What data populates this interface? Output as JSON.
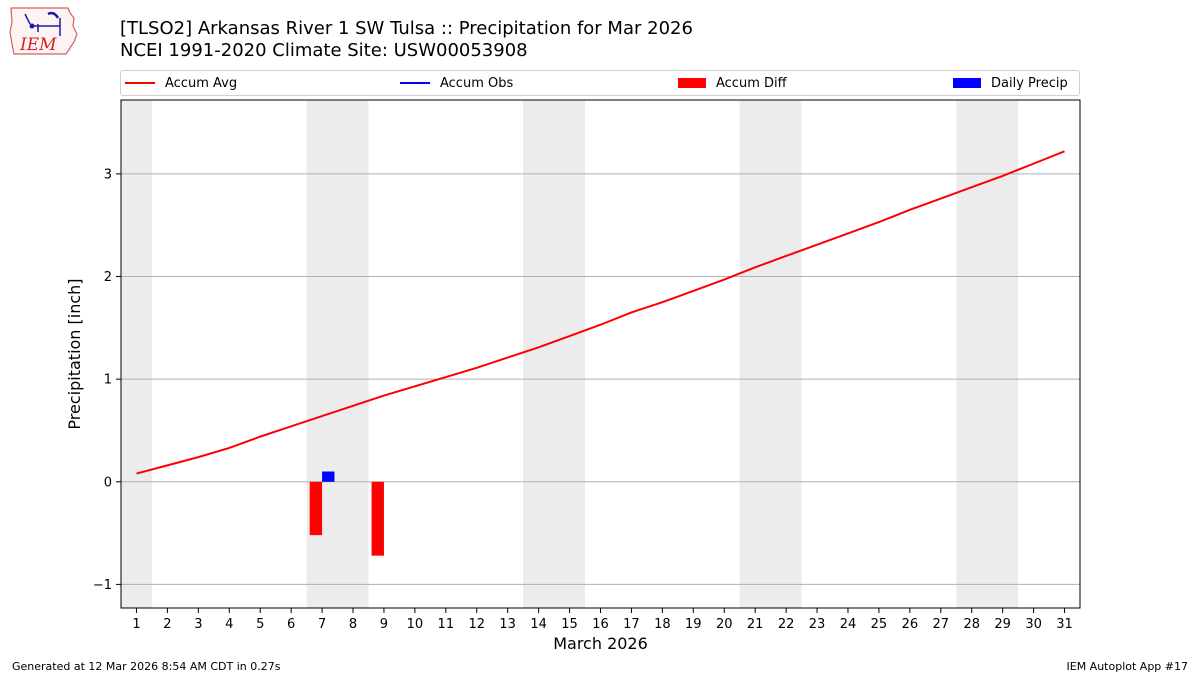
{
  "header": {
    "title_line1": "[TLSO2] Arkansas River 1 SW Tulsa :: Precipitation for Mar 2026",
    "title_line2": "NCEI 1991-2020 Climate Site: USW00053908"
  },
  "logo": {
    "text": "IEM"
  },
  "legend": {
    "position": "top",
    "items": [
      {
        "label": "Accum Avg",
        "kind": "line",
        "color": "#ff0000"
      },
      {
        "label": "Accum Obs",
        "kind": "line",
        "color": "#0000ff"
      },
      {
        "label": "Accum Diff",
        "kind": "box",
        "color": "#ff0000"
      },
      {
        "label": "Daily Precip",
        "kind": "box",
        "color": "#0000ff"
      }
    ]
  },
  "footer": {
    "left": "Generated at 12 Mar 2026 8:54 AM CDT in 0.27s",
    "right": "IEM Autoplot App #17"
  },
  "chart_data": {
    "type": "line",
    "title": "[TLSO2] Arkansas River 1 SW Tulsa :: Precipitation for Mar 2026",
    "xlabel": "March 2026",
    "ylabel": "Precipitation [inch]",
    "xlim": [
      0.5,
      31.5
    ],
    "ylim": [
      -1.23,
      3.72
    ],
    "x_ticks": [
      1,
      2,
      3,
      4,
      5,
      6,
      7,
      8,
      9,
      10,
      11,
      12,
      13,
      14,
      15,
      16,
      17,
      18,
      19,
      20,
      21,
      22,
      23,
      24,
      25,
      26,
      27,
      28,
      29,
      30,
      31
    ],
    "y_ticks": [
      -1,
      0,
      1,
      2,
      3
    ],
    "y_tick_labels": [
      "−1",
      "0",
      "1",
      "2",
      "3"
    ],
    "grid": "horizontal",
    "weekend_shading": [
      [
        0.5,
        1.5
      ],
      [
        6.5,
        8.5
      ],
      [
        13.5,
        15.5
      ],
      [
        20.5,
        22.5
      ],
      [
        27.5,
        29.5
      ]
    ],
    "series": [
      {
        "name": "Accum Avg",
        "type": "line",
        "color": "#ff0000",
        "x": [
          1,
          2,
          3,
          4,
          5,
          6,
          7,
          8,
          9,
          10,
          11,
          12,
          13,
          14,
          15,
          16,
          17,
          18,
          19,
          20,
          21,
          22,
          23,
          24,
          25,
          26,
          27,
          28,
          29,
          30,
          31
        ],
        "values": [
          0.08,
          0.16,
          0.24,
          0.33,
          0.44,
          0.54,
          0.64,
          0.74,
          0.84,
          0.93,
          1.02,
          1.11,
          1.21,
          1.31,
          1.42,
          1.53,
          1.65,
          1.75,
          1.86,
          1.97,
          2.09,
          2.2,
          2.31,
          2.42,
          2.53,
          2.65,
          2.76,
          2.87,
          2.98,
          3.1,
          3.22
        ]
      },
      {
        "name": "Accum Diff",
        "type": "bar",
        "color": "#ff0000",
        "x": [
          7,
          9
        ],
        "values": [
          -0.52,
          -0.72
        ]
      },
      {
        "name": "Daily Precip",
        "type": "bar",
        "color": "#0000ff",
        "x": [
          7
        ],
        "values": [
          0.1
        ]
      }
    ]
  }
}
